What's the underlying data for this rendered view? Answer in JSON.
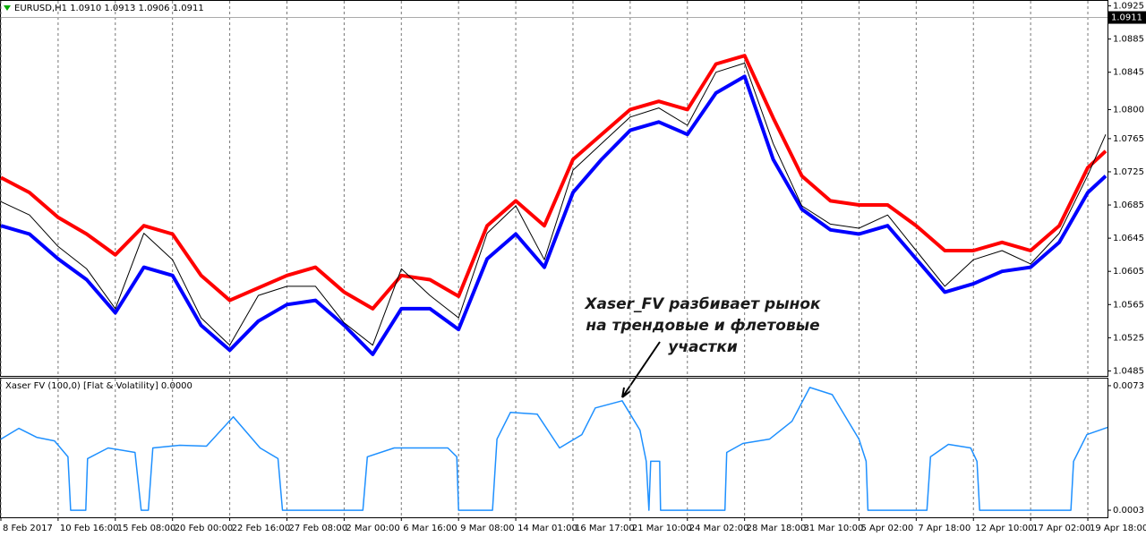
{
  "chart_data": [
    {
      "type": "line",
      "header": "EURUSD,H1  1.0910 1.0913 1.0906 1.0911",
      "annotation": [
        "Xaser_FV разбивает рынок",
        "на трендовые и флетовые",
        "участки"
      ],
      "xlim": [
        0,
        1238
      ],
      "ylim": [
        1.0479,
        1.0931
      ],
      "yticks": [
        1.0925,
        1.0885,
        1.0845,
        {
          "value": 1.08,
          "label": "1.0800"
        },
        1.0765,
        1.0725,
        1.0685,
        1.0645,
        1.0605,
        1.0565,
        1.0525,
        1.0485
      ],
      "current_price": 1.0911,
      "grid": true,
      "x": [
        0,
        32,
        64,
        96,
        128,
        160,
        192,
        224,
        256,
        288,
        320,
        352,
        384,
        416,
        448,
        480,
        512,
        544,
        576,
        608,
        640,
        672,
        704,
        736,
        768,
        800,
        832,
        864,
        896,
        928,
        960,
        992,
        1024,
        1056,
        1088,
        1120,
        1152,
        1184,
        1216,
        1236
      ],
      "series": [
        {
          "color": "#ff0000",
          "values": [
            1.0718,
            1.07,
            1.067,
            1.065,
            1.0625,
            1.066,
            1.065,
            1.06,
            1.057,
            1.0585,
            1.06,
            1.061,
            1.058,
            1.056,
            1.06,
            1.0595,
            1.0575,
            1.066,
            1.069,
            1.066,
            1.074,
            1.077,
            1.08,
            1.081,
            1.08,
            1.0855,
            1.0865,
            1.079,
            1.072,
            1.069,
            1.0685,
            1.0685,
            1.066,
            1.063,
            1.063,
            1.064,
            1.063,
            1.066,
            1.073,
            1.075
          ]
        },
        {
          "color": "#0000ff",
          "values": [
            1.066,
            1.065,
            1.062,
            1.0595,
            1.0555,
            1.061,
            1.06,
            1.054,
            1.051,
            1.0545,
            1.0565,
            1.057,
            1.054,
            1.0505,
            1.056,
            1.056,
            1.0535,
            1.062,
            1.065,
            1.061,
            1.07,
            1.074,
            1.0775,
            1.0785,
            1.077,
            1.082,
            1.084,
            1.074,
            1.068,
            1.0655,
            1.065,
            1.066,
            1.062,
            1.058,
            1.059,
            1.0605,
            1.061,
            1.064,
            1.07,
            1.072
          ]
        },
        {
          "color": "#000000",
          "values": [
            1.0689,
            1.0673,
            1.0635,
            1.0608,
            1.056,
            1.0651,
            1.0619,
            1.0549,
            1.0516,
            1.0576,
            1.0587,
            1.0587,
            1.0543,
            1.0516,
            1.0608,
            1.0576,
            1.0549,
            1.0651,
            1.0684,
            1.0619,
            1.0727,
            1.0759,
            1.0791,
            1.0802,
            1.0781,
            1.0845,
            1.0856,
            1.0759,
            1.0684,
            1.0662,
            1.0657,
            1.0673,
            1.063,
            1.0587,
            1.0619,
            1.063,
            1.0614,
            1.0651,
            1.0721,
            1.077
          ]
        }
      ]
    },
    {
      "type": "line",
      "title": "Xaser FV (100,0) [Flat & Volatility] 0.0000",
      "xlim": [
        0,
        1238
      ],
      "ylim": [
        -0.0001,
        0.0077
      ],
      "yticks": [
        0.0073,
        0.0003
      ],
      "grid": true,
      "xticks": [
        {
          "value": 0,
          "label": "8 Feb 2017"
        },
        {
          "value": 64,
          "label": "10 Feb 16:00"
        },
        {
          "value": 128,
          "label": "15 Feb 08:00"
        },
        {
          "value": 192,
          "label": "20 Feb 00:00"
        },
        {
          "value": 256,
          "label": "22 Feb 16:00"
        },
        {
          "value": 320,
          "label": "27 Feb 08:00"
        },
        {
          "value": 384,
          "label": "2 Mar 00:00"
        },
        {
          "value": 448,
          "label": "6 Mar 16:00"
        },
        {
          "value": 512,
          "label": "9 Mar 08:00"
        },
        {
          "value": 576,
          "label": "14 Mar 01:00"
        },
        {
          "value": 640,
          "label": "16 Mar 17:00"
        },
        {
          "value": 704,
          "label": "21 Mar 10:00"
        },
        {
          "value": 768,
          "label": "24 Mar 02:00"
        },
        {
          "value": 832,
          "label": "28 Mar 18:00"
        },
        {
          "value": 896,
          "label": "31 Mar 10:00"
        },
        {
          "value": 960,
          "label": "5 Apr 02:00"
        },
        {
          "value": 1024,
          "label": "7 Apr 18:00"
        },
        {
          "value": 1088,
          "label": "12 Apr 10:00"
        },
        {
          "value": 1152,
          "label": "17 Apr 02:00"
        },
        {
          "value": 1216,
          "label": "19 Apr 18:00"
        }
      ],
      "x": [
        0,
        20,
        40,
        60,
        75,
        78,
        95,
        97,
        120,
        150,
        157,
        165,
        170,
        200,
        230,
        260,
        290,
        310,
        315,
        405,
        410,
        440,
        500,
        510,
        512,
        550,
        555,
        570,
        600,
        625,
        650,
        665,
        695,
        715,
        722,
        725,
        727,
        737,
        738,
        810,
        812,
        830,
        860,
        885,
        905,
        930,
        960,
        968,
        970,
        1036,
        1040,
        1060,
        1085,
        1092,
        1095,
        1197,
        1200,
        1215,
        1238
      ],
      "series": [
        {
          "color": "#1e90ff",
          "values": [
            0.0043,
            0.0049,
            0.0044,
            0.0042,
            0.0033,
            0.0003,
            0.0003,
            0.0032,
            0.0038,
            0.00355,
            0.0003,
            0.0003,
            0.0038,
            0.00395,
            0.0039,
            0.00555,
            0.0038,
            0.0032,
            0.0003,
            0.0003,
            0.0033,
            0.0038,
            0.0038,
            0.0033,
            0.0003,
            0.0003,
            0.0043,
            0.0058,
            0.0057,
            0.0038,
            0.00455,
            0.00605,
            0.00645,
            0.0048,
            0.00305,
            0.0003,
            0.00305,
            0.00305,
            0.0003,
            0.0003,
            0.00355,
            0.00405,
            0.0043,
            0.0053,
            0.0072,
            0.0068,
            0.0043,
            0.00305,
            0.0003,
            0.0003,
            0.0033,
            0.004,
            0.0038,
            0.00305,
            0.0003,
            0.0003,
            0.00305,
            0.00455,
            0.00495
          ]
        }
      ]
    }
  ]
}
